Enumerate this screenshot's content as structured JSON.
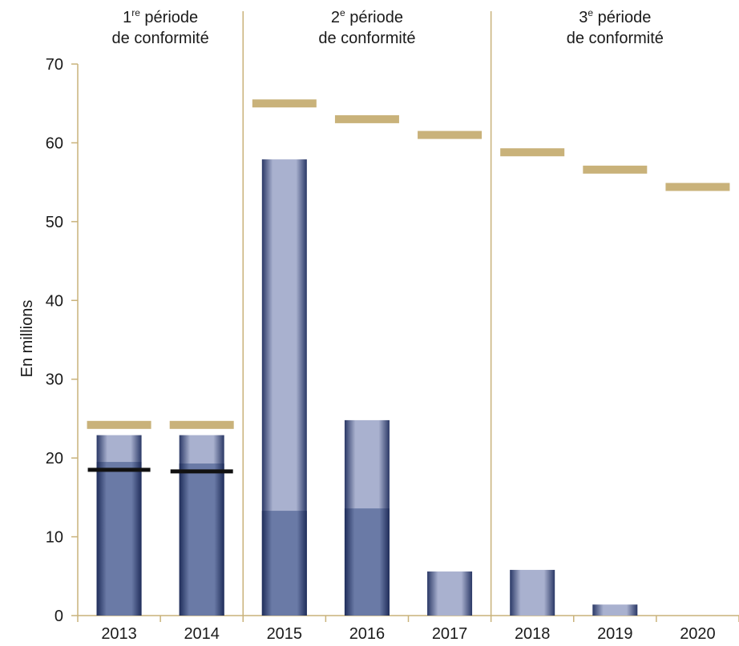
{
  "chart_data": {
    "type": "bar",
    "ylabel": "En millions",
    "ylim": [
      0,
      70
    ],
    "yticks": [
      0,
      10,
      20,
      30,
      40,
      50,
      60,
      70
    ],
    "categories": [
      "2013",
      "2014",
      "2015",
      "2016",
      "2017",
      "2018",
      "2019",
      "2020"
    ],
    "periods": [
      {
        "num": "1",
        "sup": "re",
        "line1_rest": " période",
        "line2": "de conformité",
        "categories": [
          "2013",
          "2014"
        ]
      },
      {
        "num": "2",
        "sup": "e",
        "line1_rest": " période",
        "line2": "de conformité",
        "categories": [
          "2015",
          "2016",
          "2017"
        ]
      },
      {
        "num": "3",
        "sup": "e",
        "line1_rest": " période",
        "line2": "de conformité",
        "categories": [
          "2018",
          "2019",
          "2020"
        ]
      }
    ],
    "series": [
      {
        "role": "dark-bar-segment",
        "color": "#6a7aa6",
        "values": [
          19.5,
          19.3,
          13.3,
          13.6,
          0,
          0,
          0,
          0
        ]
      },
      {
        "role": "light-bar-total",
        "color": "#a9b1cf",
        "values": [
          22.9,
          22.9,
          57.9,
          24.8,
          5.6,
          5.8,
          1.4,
          0
        ]
      },
      {
        "role": "gold-marker",
        "color": "#c9b27a",
        "values": [
          24.2,
          24.2,
          65.0,
          63.0,
          61.0,
          58.8,
          56.6,
          54.4
        ]
      },
      {
        "role": "black-marker",
        "color": "#111111",
        "values": [
          18.5,
          18.3,
          null,
          null,
          null,
          null,
          null,
          null
        ]
      }
    ],
    "colors": {
      "axis": "#c9b27a",
      "bar_edge": "#1f2d5a"
    },
    "grid": false
  }
}
